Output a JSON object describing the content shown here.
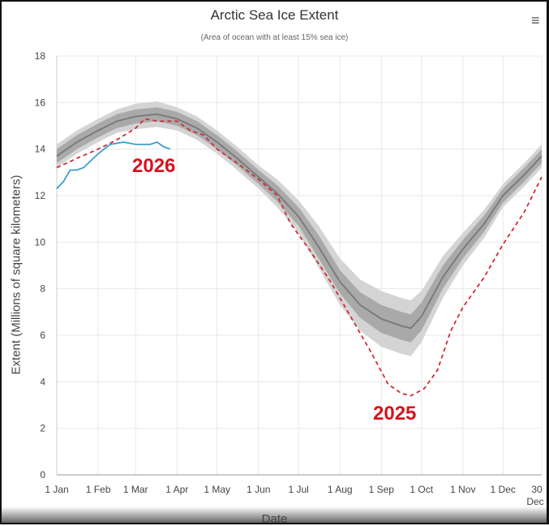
{
  "chart_data": {
    "type": "line",
    "title": "Arctic Sea Ice Extent",
    "subtitle": "(Area of ocean with at least 15% sea ice)",
    "xlabel": "Date",
    "ylabel": "Extent (Millions of square kilometers)",
    "ylim": [
      0,
      18
    ],
    "yticks": [
      0,
      2,
      4,
      6,
      8,
      10,
      12,
      14,
      16,
      18
    ],
    "xlim_day_of_year": [
      0,
      363
    ],
    "xticks": [
      {
        "label": "1 Jan",
        "day": 0
      },
      {
        "label": "1 Feb",
        "day": 31
      },
      {
        "label": "1 Mar",
        "day": 59
      },
      {
        "label": "1 Apr",
        "day": 90
      },
      {
        "label": "1 May",
        "day": 120
      },
      {
        "label": "1 Jun",
        "day": 151
      },
      {
        "label": "1 Jul",
        "day": 181
      },
      {
        "label": "1 Aug",
        "day": 212
      },
      {
        "label": "1 Sep",
        "day": 243
      },
      {
        "label": "1 Oct",
        "day": 273
      },
      {
        "label": "1 Nov",
        "day": 304
      },
      {
        "label": "1 Dec",
        "day": 334
      },
      {
        "label": "30 Dec",
        "day": 363
      }
    ],
    "grid": true,
    "series": [
      {
        "name": "median",
        "style": "solid",
        "color": "#777777",
        "x": [
          0,
          15,
          31,
          45,
          59,
          75,
          90,
          105,
          120,
          135,
          151,
          165,
          181,
          196,
          212,
          227,
          243,
          258,
          265,
          273,
          289,
          304,
          320,
          334,
          350,
          363
        ],
        "y": [
          13.7,
          14.3,
          14.8,
          15.2,
          15.4,
          15.5,
          15.3,
          14.9,
          14.3,
          13.6,
          12.8,
          12.1,
          11.1,
          9.8,
          8.3,
          7.3,
          6.7,
          6.4,
          6.3,
          6.8,
          8.5,
          9.7,
          10.8,
          12.0,
          12.9,
          13.7
        ],
        "inner_band_halfwidth": [
          0.3,
          0.3,
          0.3,
          0.3,
          0.3,
          0.3,
          0.3,
          0.3,
          0.3,
          0.3,
          0.3,
          0.35,
          0.4,
          0.5,
          0.5,
          0.55,
          0.6,
          0.6,
          0.6,
          0.6,
          0.5,
          0.4,
          0.35,
          0.3,
          0.3,
          0.3
        ],
        "outer_band_halfwidth": [
          0.5,
          0.5,
          0.5,
          0.5,
          0.55,
          0.55,
          0.5,
          0.5,
          0.5,
          0.5,
          0.5,
          0.6,
          0.7,
          0.9,
          1.0,
          1.1,
          1.2,
          1.2,
          1.2,
          1.1,
          0.9,
          0.7,
          0.6,
          0.5,
          0.5,
          0.5
        ]
      },
      {
        "name": "2025",
        "style": "dashed",
        "color": "#d02b3a",
        "x": [
          0,
          15,
          31,
          45,
          59,
          66,
          75,
          90,
          100,
          110,
          120,
          135,
          151,
          165,
          175,
          190,
          205,
          220,
          235,
          248,
          258,
          265,
          275,
          285,
          295,
          304,
          320,
          334,
          350,
          363
        ],
        "y": [
          13.2,
          13.6,
          14.0,
          14.4,
          14.9,
          15.3,
          15.2,
          15.2,
          14.8,
          14.6,
          14.0,
          13.4,
          12.7,
          12.0,
          10.8,
          9.6,
          8.3,
          6.8,
          5.3,
          3.9,
          3.5,
          3.4,
          3.7,
          4.5,
          6.2,
          7.2,
          8.5,
          9.9,
          11.3,
          12.8
        ]
      },
      {
        "name": "2026",
        "style": "solid",
        "color": "#3aa0c8",
        "x": [
          0,
          5,
          10,
          15,
          20,
          31,
          40,
          50,
          59,
          70,
          75,
          80,
          85
        ],
        "y": [
          12.3,
          12.6,
          13.1,
          13.1,
          13.2,
          13.8,
          14.2,
          14.3,
          14.2,
          14.2,
          14.3,
          14.1,
          14.0
        ]
      }
    ],
    "annotations": [
      {
        "text": "2026",
        "color": "#d4141c",
        "near_series": "2026"
      },
      {
        "text": "2025",
        "color": "#d4141c",
        "near_series": "2025"
      }
    ]
  },
  "menu_icon": "hamburger-menu-icon"
}
